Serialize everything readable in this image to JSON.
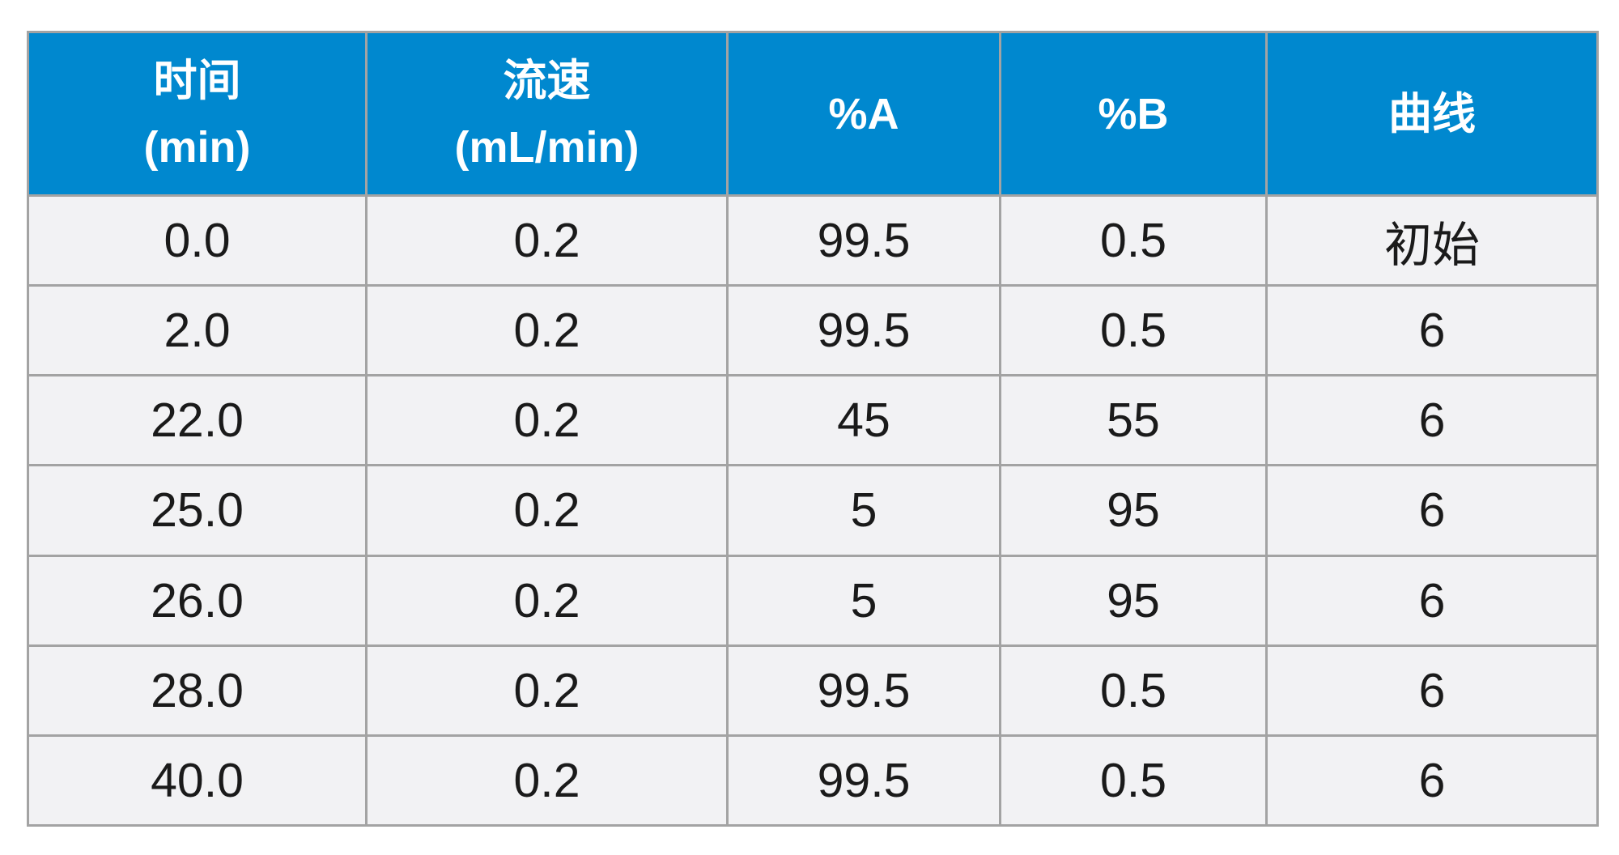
{
  "table": {
    "headers": [
      {
        "line1": "时间",
        "line2": "(min)"
      },
      {
        "line1": "流速",
        "line2": "(mL/min)"
      },
      {
        "line1": "%A",
        "line2": ""
      },
      {
        "line1": "%B",
        "line2": ""
      },
      {
        "line1": "曲线",
        "line2": ""
      }
    ],
    "rows": [
      [
        "0.0",
        "0.2",
        "99.5",
        "0.5",
        "初始"
      ],
      [
        "2.0",
        "0.2",
        "99.5",
        "0.5",
        "6"
      ],
      [
        "22.0",
        "0.2",
        "45",
        "55",
        "6"
      ],
      [
        "25.0",
        "0.2",
        "5",
        "95",
        "6"
      ],
      [
        "26.0",
        "0.2",
        "5",
        "95",
        "6"
      ],
      [
        "28.0",
        "0.2",
        "99.5",
        "0.5",
        "6"
      ],
      [
        "40.0",
        "0.2",
        "99.5",
        "0.5",
        "6"
      ]
    ]
  },
  "colors": {
    "header_background": "#0088cf",
    "header_text": "#ffffff",
    "cell_background": "#f2f2f4",
    "border": "#a3a3a3"
  }
}
